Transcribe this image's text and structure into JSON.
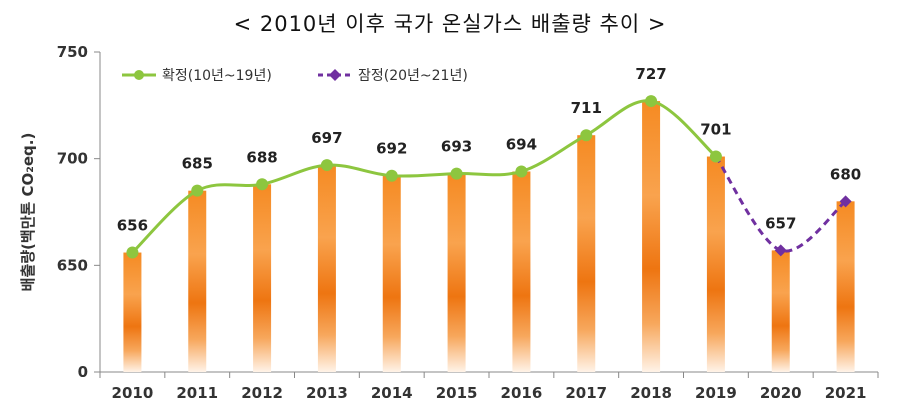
{
  "chart_data": {
    "type": "bar",
    "title": "< 2010년 이후 국가 온실가스 배출량 추이 >",
    "ylabel": "배출량(백만톤 CO₂eq.)",
    "y_ticks": [
      "750",
      "700",
      "650",
      "0"
    ],
    "y_tick_values": [
      750,
      700,
      650,
      600
    ],
    "ylim": [
      600,
      750
    ],
    "axis_break": "0 (축 생략 구간: 600 이하)",
    "categories": [
      "2010",
      "2011",
      "2012",
      "2013",
      "2014",
      "2015",
      "2016",
      "2017",
      "2018",
      "2019",
      "2020",
      "2021"
    ],
    "values": [
      656,
      685,
      688,
      697,
      692,
      693,
      694,
      711,
      727,
      701,
      657,
      680
    ],
    "series": [
      {
        "name": "확정(10년~19년)",
        "color": "#8dc63f",
        "style": "solid",
        "marker": "circle",
        "x": [
          "2010",
          "2011",
          "2012",
          "2013",
          "2014",
          "2015",
          "2016",
          "2017",
          "2018",
          "2019"
        ],
        "values": [
          656,
          685,
          688,
          697,
          692,
          693,
          694,
          711,
          727,
          701
        ]
      },
      {
        "name": "잠정(20년~21년)",
        "color": "#7030a0",
        "style": "dashed",
        "marker": "diamond",
        "x": [
          "2019",
          "2020",
          "2021"
        ],
        "values": [
          701,
          657,
          680
        ]
      }
    ],
    "legend_position": "top-left",
    "bar_color": "#f07f1a"
  }
}
